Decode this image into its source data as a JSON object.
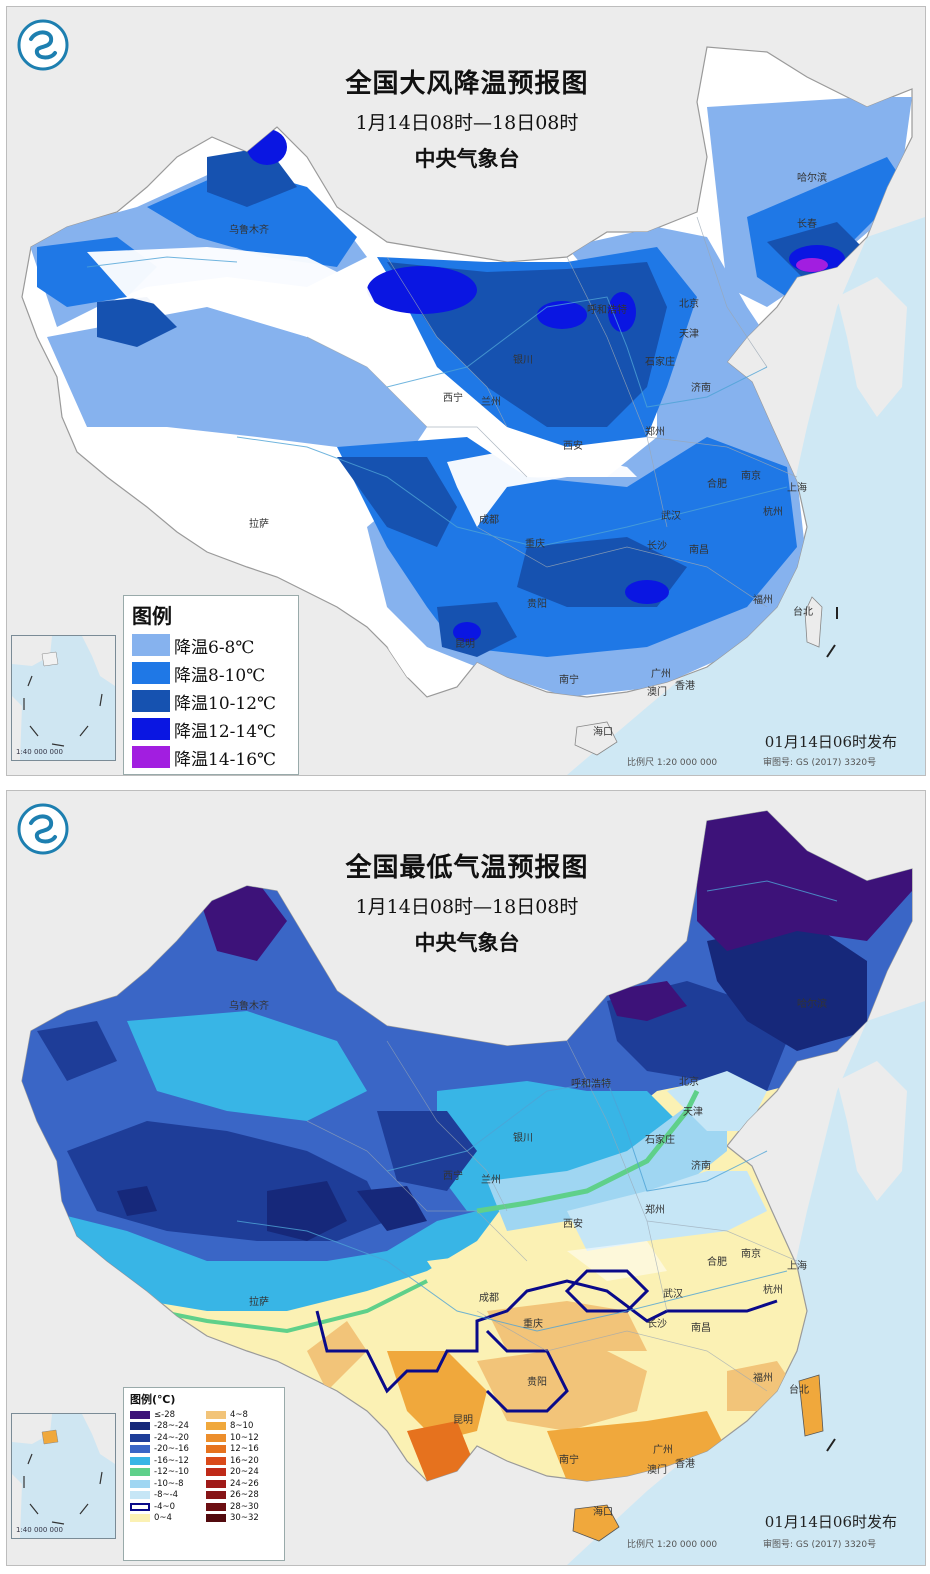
{
  "colors": {
    "sea": "#cfe8f4",
    "land_other": "#ececec",
    "china_white": "#ffffff",
    "cool_6_8": "#86b2ee",
    "cool_8_10": "#1f78e6",
    "cool_10_12": "#1652b0",
    "cool_12_14": "#0a16e2",
    "cool_14_16": "#a21ee0",
    "t_le_m28": "#3d1279",
    "t_m28_m24": "#16287a",
    "t_m24_m20": "#1e3d98",
    "t_m20_m16": "#3a66c6",
    "t_m16_m12": "#38b5e6",
    "t_m12_m10": "#5fd08a",
    "t_m10_m8": "#9fd6f2",
    "t_m8_m4": "#c6e6f6",
    "t_m4_0": "#ffffff",
    "t_0_4": "#fbf1b4",
    "t_4_8": "#f2c479",
    "t_8_10": "#f0a83c",
    "zero_line": "#0a0a8a"
  },
  "panel_wind": {
    "title": "全国大风降温预报图",
    "period": "1月14日08时—18日08时",
    "org": "中央气象台",
    "issued": "01月14日06时发布",
    "scale": "比例尺 1:20 000 000",
    "approval": "审图号: GS (2017) 3320号",
    "legend": {
      "title": "图例",
      "items": [
        {
          "label": "降温6-8℃",
          "color": "#86b2ee"
        },
        {
          "label": "降温8-10℃",
          "color": "#1f78e6"
        },
        {
          "label": "降温10-12℃",
          "color": "#1652b0"
        },
        {
          "label": "降温12-14℃",
          "color": "#0a16e2"
        },
        {
          "label": "降温14-16℃",
          "color": "#a21ee0"
        }
      ]
    },
    "cities": [
      "乌鲁木齐",
      "哈尔滨",
      "长春",
      "呼和浩特",
      "北京",
      "天津",
      "银川",
      "石家庄",
      "西宁",
      "兰州",
      "济南",
      "郑州",
      "西安",
      "合肥",
      "南京",
      "上海",
      "成都",
      "武汉",
      "重庆",
      "杭州",
      "拉萨",
      "长沙",
      "南昌",
      "贵阳",
      "福州",
      "台北",
      "昆明",
      "南宁",
      "广州",
      "澳门",
      "香港",
      "海口"
    ],
    "inset_scale": "1:40 000 000"
  },
  "panel_temp": {
    "title": "全国最低气温预报图",
    "period": "1月14日08时—18日08时",
    "org": "中央气象台",
    "issued": "01月14日06时发布",
    "scale": "比例尺 1:20 000 000",
    "approval": "审图号: GS (2017) 3320号",
    "legend": {
      "title": "图例(℃)",
      "left": [
        {
          "label": "≤-28",
          "color": "#3d1279"
        },
        {
          "label": "-28~-24",
          "color": "#16287a"
        },
        {
          "label": "-24~-20",
          "color": "#1e3d98"
        },
        {
          "label": "-20~-16",
          "color": "#3a66c6"
        },
        {
          "label": "-16~-12",
          "color": "#38b5e6"
        },
        {
          "label": "-12~-10",
          "color": "#5fd08a"
        },
        {
          "label": "-10~-8",
          "color": "#9fd6f2"
        },
        {
          "label": "-8~-4",
          "color": "#c6e6f6"
        },
        {
          "label": "-4~0",
          "color": "#ffffff"
        },
        {
          "label": "0~4",
          "color": "#fbf1b4"
        }
      ],
      "right": [
        {
          "label": "4~8",
          "color": "#f2c479"
        },
        {
          "label": "8~10",
          "color": "#f0a83c"
        },
        {
          "label": "10~12",
          "color": "#ec8e2c"
        },
        {
          "label": "12~16",
          "color": "#e6721e"
        },
        {
          "label": "16~20",
          "color": "#da4a1a"
        },
        {
          "label": "20~24",
          "color": "#bf2a18"
        },
        {
          "label": "24~26",
          "color": "#a01a18"
        },
        {
          "label": "26~28",
          "color": "#861416"
        },
        {
          "label": "28~30",
          "color": "#6c0e12"
        },
        {
          "label": "30~32",
          "color": "#520a0e"
        }
      ]
    },
    "cities": [
      "乌鲁木齐",
      "哈尔滨",
      "呼和浩特",
      "北京",
      "天津",
      "银川",
      "石家庄",
      "西宁",
      "兰州",
      "济南",
      "郑州",
      "西安",
      "合肥",
      "南京",
      "上海",
      "成都",
      "武汉",
      "重庆",
      "杭州",
      "拉萨",
      "长沙",
      "南昌",
      "贵阳",
      "福州",
      "台北",
      "昆明",
      "南宁",
      "广州",
      "澳门",
      "香港",
      "海口"
    ],
    "inset_scale": "1:40 000 000"
  }
}
